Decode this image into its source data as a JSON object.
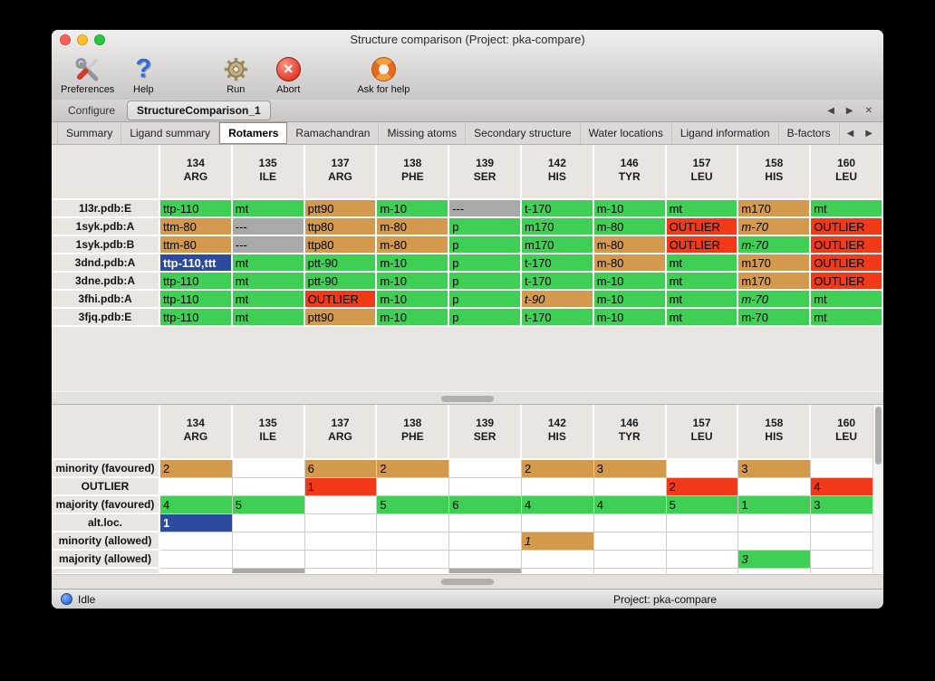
{
  "window": {
    "title": "Structure comparison (Project: pka-compare)"
  },
  "toolbar": {
    "items": [
      {
        "name": "preferences-button",
        "icon": "tools-icon",
        "label": "Preferences"
      },
      {
        "name": "help-button",
        "icon": "question-icon",
        "label": "Help"
      },
      {
        "name": "run-button",
        "icon": "gear-icon",
        "label": "Run"
      },
      {
        "name": "abort-button",
        "icon": "abort-icon",
        "label": "Abort"
      },
      {
        "name": "ask-for-help-button",
        "icon": "lifebuoy-icon",
        "label": "Ask for help"
      }
    ]
  },
  "tab_bar": {
    "tabs": [
      {
        "label": "Configure"
      },
      {
        "label": "StructureComparison_1"
      }
    ],
    "active_index": 1
  },
  "subtab_bar": {
    "tabs": [
      "Summary",
      "Ligand summary",
      "Rotamers",
      "Ramachandran",
      "Missing atoms",
      "Secondary structure",
      "Water locations",
      "Ligand information",
      "B-factors"
    ],
    "active": "Rotamers"
  },
  "columns": [
    {
      "num": "134",
      "res": "ARG"
    },
    {
      "num": "135",
      "res": "ILE"
    },
    {
      "num": "137",
      "res": "ARG"
    },
    {
      "num": "138",
      "res": "PHE"
    },
    {
      "num": "139",
      "res": "SER"
    },
    {
      "num": "142",
      "res": "HIS"
    },
    {
      "num": "146",
      "res": "TYR"
    },
    {
      "num": "157",
      "res": "LEU"
    },
    {
      "num": "158",
      "res": "HIS"
    },
    {
      "num": "160",
      "res": "LEU"
    }
  ],
  "rotamer_table": {
    "rows": [
      {
        "name": "1l3r.pdb:E",
        "cells": [
          {
            "t": "ttp-110",
            "c": "green"
          },
          {
            "t": "mt",
            "c": "green"
          },
          {
            "t": "ptt90",
            "c": "orange"
          },
          {
            "t": "m-10",
            "c": "green"
          },
          {
            "t": "---",
            "c": "gray"
          },
          {
            "t": "t-170",
            "c": "green"
          },
          {
            "t": "m-10",
            "c": "green"
          },
          {
            "t": "mt",
            "c": "green"
          },
          {
            "t": "m170",
            "c": "orange"
          },
          {
            "t": "mt",
            "c": "green"
          }
        ]
      },
      {
        "name": "1syk.pdb:A",
        "cells": [
          {
            "t": "ttm-80",
            "c": "orange"
          },
          {
            "t": "---",
            "c": "gray"
          },
          {
            "t": "ttp80",
            "c": "orange"
          },
          {
            "t": "m-80",
            "c": "orange"
          },
          {
            "t": "p",
            "c": "green"
          },
          {
            "t": "m170",
            "c": "green"
          },
          {
            "t": "m-80",
            "c": "green"
          },
          {
            "t": "OUTLIER",
            "c": "red"
          },
          {
            "t": "m-70",
            "c": "orange",
            "i": true
          },
          {
            "t": "OUTLIER",
            "c": "red"
          }
        ]
      },
      {
        "name": "1syk.pdb:B",
        "cells": [
          {
            "t": "ttm-80",
            "c": "orange"
          },
          {
            "t": "---",
            "c": "gray"
          },
          {
            "t": "ttp80",
            "c": "orange"
          },
          {
            "t": "m-80",
            "c": "orange"
          },
          {
            "t": "p",
            "c": "green"
          },
          {
            "t": "m170",
            "c": "green"
          },
          {
            "t": "m-80",
            "c": "orange"
          },
          {
            "t": "OUTLIER",
            "c": "red"
          },
          {
            "t": "m-70",
            "c": "green",
            "i": true
          },
          {
            "t": "OUTLIER",
            "c": "red"
          }
        ]
      },
      {
        "name": "3dnd.pdb:A",
        "cells": [
          {
            "t": "ttp-110,ttt",
            "c": "blue",
            "sel": true
          },
          {
            "t": "mt",
            "c": "green"
          },
          {
            "t": "ptt-90",
            "c": "green"
          },
          {
            "t": "m-10",
            "c": "green"
          },
          {
            "t": "p",
            "c": "green"
          },
          {
            "t": "t-170",
            "c": "green"
          },
          {
            "t": "m-80",
            "c": "orange"
          },
          {
            "t": "mt",
            "c": "green"
          },
          {
            "t": "m170",
            "c": "orange"
          },
          {
            "t": "OUTLIER",
            "c": "red"
          }
        ]
      },
      {
        "name": "3dne.pdb:A",
        "cells": [
          {
            "t": "ttp-110",
            "c": "green"
          },
          {
            "t": "mt",
            "c": "green"
          },
          {
            "t": "ptt-90",
            "c": "green"
          },
          {
            "t": "m-10",
            "c": "green"
          },
          {
            "t": "p",
            "c": "green"
          },
          {
            "t": "t-170",
            "c": "green"
          },
          {
            "t": "m-10",
            "c": "green"
          },
          {
            "t": "mt",
            "c": "green"
          },
          {
            "t": "m170",
            "c": "orange"
          },
          {
            "t": "OUTLIER",
            "c": "red"
          }
        ]
      },
      {
        "name": "3fhi.pdb:A",
        "cells": [
          {
            "t": "ttp-110",
            "c": "green"
          },
          {
            "t": "mt",
            "c": "green"
          },
          {
            "t": "OUTLIER",
            "c": "red"
          },
          {
            "t": "m-10",
            "c": "green"
          },
          {
            "t": "p",
            "c": "green"
          },
          {
            "t": "t-90",
            "c": "orange",
            "i": true
          },
          {
            "t": "m-10",
            "c": "green"
          },
          {
            "t": "mt",
            "c": "green"
          },
          {
            "t": "m-70",
            "c": "green",
            "i": true
          },
          {
            "t": "mt",
            "c": "green"
          }
        ]
      },
      {
        "name": "3fjq.pdb:E",
        "cells": [
          {
            "t": "ttp-110",
            "c": "green"
          },
          {
            "t": "mt",
            "c": "green"
          },
          {
            "t": "ptt90",
            "c": "orange"
          },
          {
            "t": "m-10",
            "c": "green"
          },
          {
            "t": "p",
            "c": "green"
          },
          {
            "t": "t-170",
            "c": "green"
          },
          {
            "t": "m-10",
            "c": "green"
          },
          {
            "t": "mt",
            "c": "green"
          },
          {
            "t": "m-70",
            "c": "green"
          },
          {
            "t": "mt",
            "c": "green"
          }
        ]
      }
    ]
  },
  "summary_table": {
    "rows": [
      {
        "name": "minority (favoured)",
        "cells": [
          {
            "t": "2",
            "c": "orange"
          },
          {},
          {
            "t": "6",
            "c": "orange"
          },
          {
            "t": "2",
            "c": "orange"
          },
          {},
          {
            "t": "2",
            "c": "orange"
          },
          {
            "t": "3",
            "c": "orange"
          },
          {},
          {
            "t": "3",
            "c": "orange"
          },
          {}
        ]
      },
      {
        "name": "OUTLIER",
        "cells": [
          {},
          {},
          {
            "t": "1",
            "c": "red"
          },
          {},
          {},
          {},
          {},
          {
            "t": "2",
            "c": "red"
          },
          {},
          {
            "t": "4",
            "c": "red"
          }
        ]
      },
      {
        "name": "majority (favoured)",
        "cells": [
          {
            "t": "4",
            "c": "green"
          },
          {
            "t": "5",
            "c": "green"
          },
          {},
          {
            "t": "5",
            "c": "green"
          },
          {
            "t": "6",
            "c": "green"
          },
          {
            "t": "4",
            "c": "green"
          },
          {
            "t": "4",
            "c": "green"
          },
          {
            "t": "5",
            "c": "green"
          },
          {
            "t": "1",
            "c": "green"
          },
          {
            "t": "3",
            "c": "green"
          }
        ]
      },
      {
        "name": "alt.loc.",
        "cells": [
          {
            "t": "1",
            "c": "blue",
            "sel": true
          },
          {},
          {},
          {},
          {},
          {},
          {},
          {},
          {},
          {}
        ]
      },
      {
        "name": "minority (allowed)",
        "cells": [
          {},
          {},
          {},
          {},
          {},
          {
            "t": "1",
            "c": "orange",
            "i": true
          },
          {},
          {},
          {},
          {}
        ]
      },
      {
        "name": "majority (allowed)",
        "cells": [
          {},
          {},
          {},
          {},
          {},
          {},
          {},
          {},
          {
            "t": "3",
            "c": "green",
            "i": true
          },
          {}
        ]
      }
    ],
    "partial_gray_columns": [
      1,
      4
    ]
  },
  "status_bar": {
    "status": "Idle",
    "project": "Project: pka-compare"
  },
  "colors": {
    "green": "#3fcf54",
    "orange": "#d39a4e",
    "red": "#f23a1b",
    "gray": "#a9a9a9",
    "blue": "#2d4b9e"
  }
}
